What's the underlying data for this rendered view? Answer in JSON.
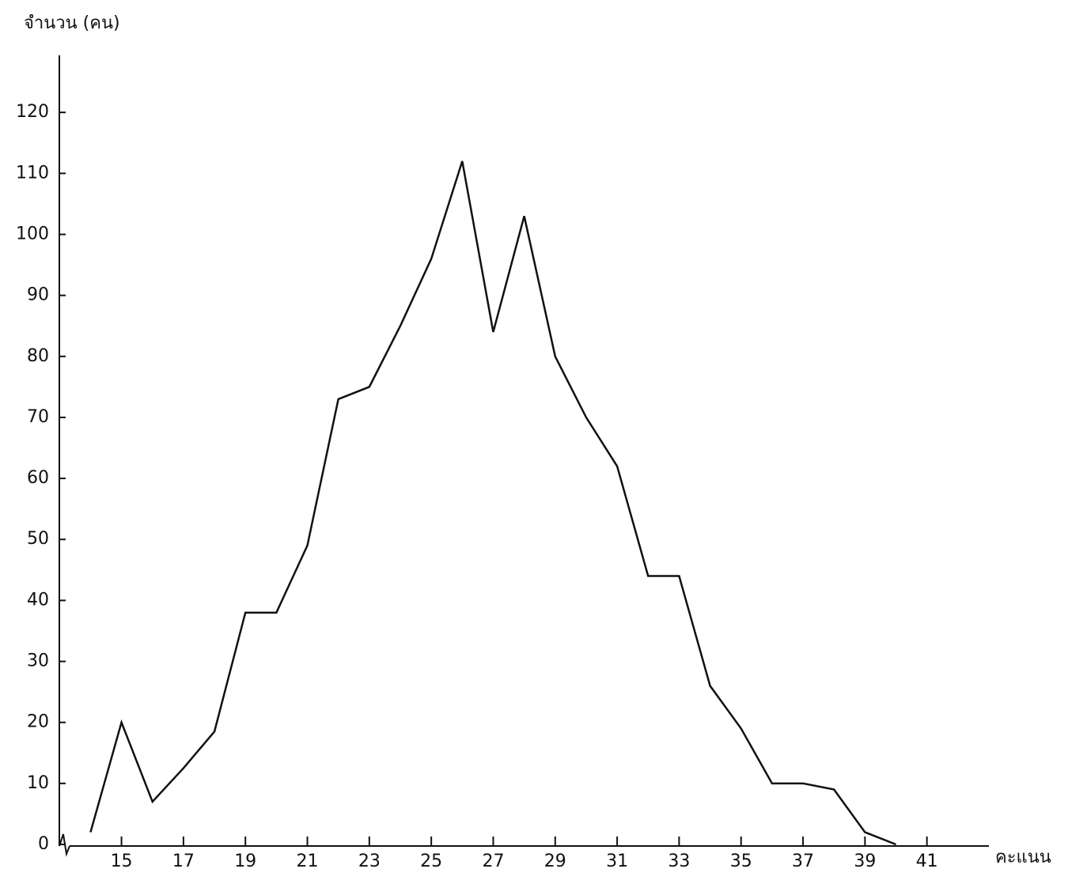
{
  "chart_data": {
    "type": "line",
    "y_label": "จำนวน (คน)",
    "x_label": "คะแนน",
    "x": [
      14,
      15,
      16,
      17,
      18,
      19,
      20,
      21,
      22,
      23,
      24,
      25,
      26,
      27,
      28,
      29,
      30,
      31,
      32,
      33,
      34,
      35,
      36,
      37,
      38,
      39,
      40
    ],
    "series": [
      {
        "color": "#111111",
        "values": [
          2,
          20,
          7,
          12.5,
          18.5,
          38,
          38,
          49,
          73,
          75,
          85,
          96,
          112,
          84,
          103,
          80,
          70,
          62,
          44,
          44,
          26,
          19,
          10,
          10,
          9,
          2,
          0
        ]
      }
    ],
    "xlim": [
      13.3,
      43
    ],
    "xticks": [
      15,
      17,
      19,
      21,
      23,
      25,
      27,
      29,
      31,
      33,
      35,
      37,
      39,
      41
    ],
    "ylim": [
      0,
      130
    ],
    "yticks": [
      0,
      10,
      20,
      30,
      40,
      50,
      60,
      70,
      80,
      90,
      100,
      110,
      120
    ],
    "grid": false
  }
}
